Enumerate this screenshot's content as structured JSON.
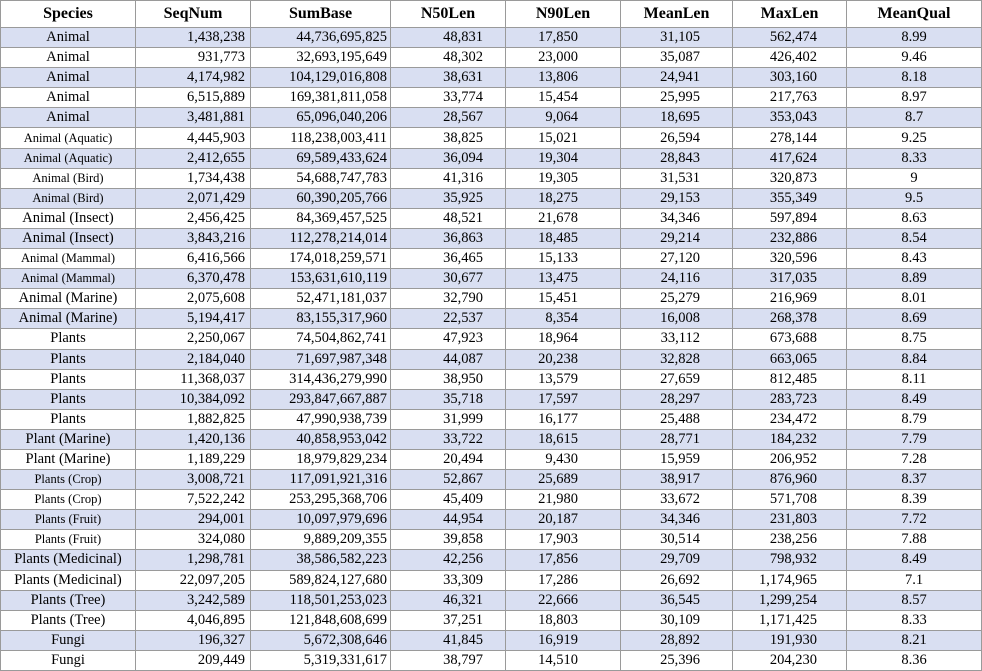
{
  "table": {
    "header": [
      "Species",
      "SeqNum",
      "SumBase",
      "N50Len",
      "N90Len",
      "MeanLen",
      "MaxLen",
      "MeanQual"
    ],
    "rows": [
      [
        "Animal",
        "1,438,238",
        "44,736,695,825",
        "48,831",
        "17,850",
        "31,105",
        "562,474",
        "8.99"
      ],
      [
        "Animal",
        "931,773",
        "32,693,195,649",
        "48,302",
        "23,000",
        "35,087",
        "426,402",
        "9.46"
      ],
      [
        "Animal",
        "4,174,982",
        "104,129,016,808",
        "38,631",
        "13,806",
        "24,941",
        "303,160",
        "8.18"
      ],
      [
        "Animal",
        "6,515,889",
        "169,381,811,058",
        "33,774",
        "15,454",
        "25,995",
        "217,763",
        "8.97"
      ],
      [
        "Animal",
        "3,481,881",
        "65,096,040,206",
        "28,567",
        "9,064",
        "18,695",
        "353,043",
        "8.7"
      ],
      [
        "Animal (Aquatic)",
        "4,445,903",
        "118,238,003,411",
        "38,825",
        "15,021",
        "26,594",
        "278,144",
        "9.25"
      ],
      [
        "Animal (Aquatic)",
        "2,412,655",
        "69,589,433,624",
        "36,094",
        "19,304",
        "28,843",
        "417,624",
        "8.33"
      ],
      [
        "Animal (Bird)",
        "1,734,438",
        "54,688,747,783",
        "41,316",
        "19,305",
        "31,531",
        "320,873",
        "9"
      ],
      [
        "Animal (Bird)",
        "2,071,429",
        "60,390,205,766",
        "35,925",
        "18,275",
        "29,153",
        "355,349",
        "9.5"
      ],
      [
        "Animal (Insect)",
        "2,456,425",
        "84,369,457,525",
        "48,521",
        "21,678",
        "34,346",
        "597,894",
        "8.63"
      ],
      [
        "Animal (Insect)",
        "3,843,216",
        "112,278,214,014",
        "36,863",
        "18,485",
        "29,214",
        "232,886",
        "8.54"
      ],
      [
        "Animal (Mammal)",
        "6,416,566",
        "174,018,259,571",
        "36,465",
        "15,133",
        "27,120",
        "320,596",
        "8.43"
      ],
      [
        "Animal (Mammal)",
        "6,370,478",
        "153,631,610,119",
        "30,677",
        "13,475",
        "24,116",
        "317,035",
        "8.89"
      ],
      [
        "Animal (Marine)",
        "2,075,608",
        "52,471,181,037",
        "32,790",
        "15,451",
        "25,279",
        "216,969",
        "8.01"
      ],
      [
        "Animal (Marine)",
        "5,194,417",
        "83,155,317,960",
        "22,537",
        "8,354",
        "16,008",
        "268,378",
        "8.69"
      ],
      [
        "Plants",
        "2,250,067",
        "74,504,862,741",
        "47,923",
        "18,964",
        "33,112",
        "673,688",
        "8.75"
      ],
      [
        "Plants",
        "2,184,040",
        "71,697,987,348",
        "44,087",
        "20,238",
        "32,828",
        "663,065",
        "8.84"
      ],
      [
        "Plants",
        "11,368,037",
        "314,436,279,990",
        "38,950",
        "13,579",
        "27,659",
        "812,485",
        "8.11"
      ],
      [
        "Plants",
        "10,384,092",
        "293,847,667,887",
        "35,718",
        "17,597",
        "28,297",
        "283,723",
        "8.49"
      ],
      [
        "Plants",
        "1,882,825",
        "47,990,938,739",
        "31,999",
        "16,177",
        "25,488",
        "234,472",
        "8.79"
      ],
      [
        "Plant (Marine)",
        "1,420,136",
        "40,858,953,042",
        "33,722",
        "18,615",
        "28,771",
        "184,232",
        "7.79"
      ],
      [
        "Plant (Marine)",
        "1,189,229",
        "18,979,829,234",
        "20,494",
        "9,430",
        "15,959",
        "206,952",
        "7.28"
      ],
      [
        "Plants (Crop)",
        "3,008,721",
        "117,091,921,316",
        "52,867",
        "25,689",
        "38,917",
        "876,960",
        "8.37"
      ],
      [
        "Plants (Crop)",
        "7,522,242",
        "253,295,368,706",
        "45,409",
        "21,980",
        "33,672",
        "571,708",
        "8.39"
      ],
      [
        "Plants (Fruit)",
        "294,001",
        "10,097,979,696",
        "44,954",
        "20,187",
        "34,346",
        "231,803",
        "7.72"
      ],
      [
        "Plants (Fruit)",
        "324,080",
        "9,889,209,355",
        "39,858",
        "17,903",
        "30,514",
        "238,256",
        "7.88"
      ],
      [
        "Plants (Medicinal)",
        "1,298,781",
        "38,586,582,223",
        "42,256",
        "17,856",
        "29,709",
        "798,932",
        "8.49"
      ],
      [
        "Plants (Medicinal)",
        "22,097,205",
        "589,824,127,680",
        "33,309",
        "17,286",
        "26,692",
        "1,174,965",
        "7.1"
      ],
      [
        "Plants (Tree)",
        "3,242,589",
        "118,501,253,023",
        "46,321",
        "22,666",
        "36,545",
        "1,299,254",
        "8.57"
      ],
      [
        "Plants (Tree)",
        "4,046,895",
        "121,848,608,699",
        "37,251",
        "18,803",
        "30,109",
        "1,171,425",
        "8.33"
      ],
      [
        "Fungi",
        "196,327",
        "5,672,308,646",
        "41,845",
        "16,919",
        "28,892",
        "191,930",
        "8.21"
      ],
      [
        "Fungi",
        "209,449",
        "5,319,331,617",
        "38,797",
        "14,510",
        "25,396",
        "204,230",
        "8.36"
      ]
    ]
  }
}
